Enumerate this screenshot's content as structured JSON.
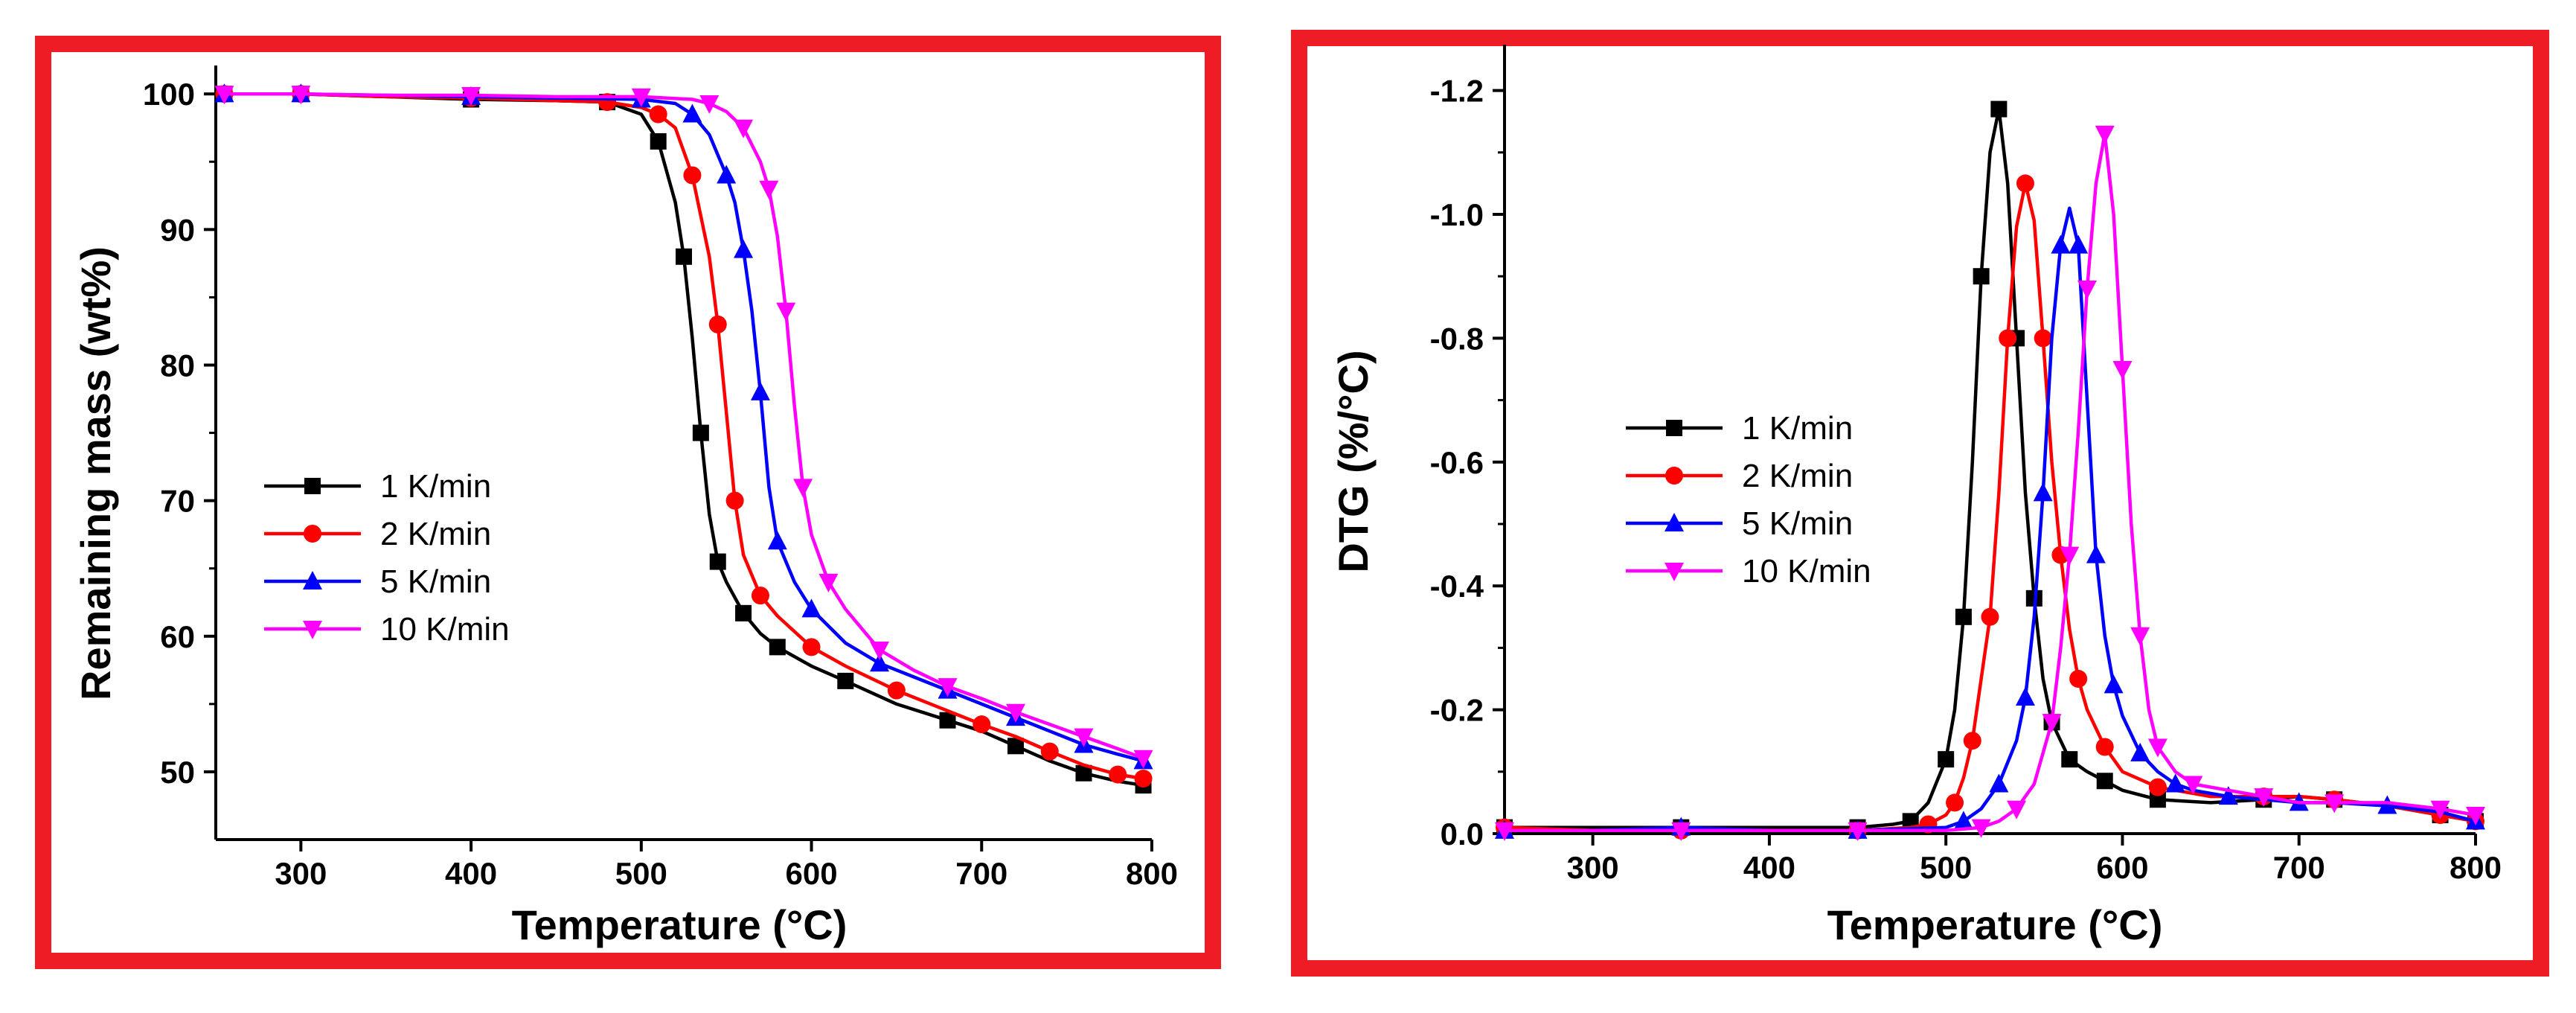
{
  "frame_color": "#ee1c25",
  "chart_data": [
    {
      "type": "line",
      "title": "",
      "xlabel": "Temperature (°C)",
      "ylabel": "Remaining mass (wt%)",
      "xlim": [
        250,
        800
      ],
      "ylim": [
        45,
        101
      ],
      "x_ticks": [
        300,
        400,
        500,
        600,
        700,
        800
      ],
      "x_tick_labels": [
        "300",
        "400",
        "500",
        "600",
        "700",
        "800"
      ],
      "y_ticks": [
        50,
        60,
        70,
        80,
        90,
        100
      ],
      "y_tick_labels": [
        "50",
        "60",
        "70",
        "80",
        "90",
        "100"
      ],
      "y_reversed": false,
      "legend_position": "center-left",
      "series": [
        {
          "name": "1 K/min",
          "color": "#000000",
          "marker": "square",
          "x": [
            255,
            275,
            300,
            350,
            400,
            450,
            480,
            500,
            510,
            520,
            525,
            530,
            535,
            540,
            545,
            550,
            560,
            570,
            580,
            600,
            620,
            650,
            680,
            700,
            720,
            740,
            760,
            780,
            795
          ],
          "y": [
            100,
            100,
            100,
            99.8,
            99.6,
            99.5,
            99.4,
            98.5,
            96.5,
            92,
            88,
            82,
            75,
            69,
            65.5,
            64,
            61.7,
            60.2,
            59.2,
            57.8,
            56.7,
            55,
            53.8,
            53,
            51.9,
            50.8,
            49.9,
            49.3,
            49
          ]
        },
        {
          "name": "2 K/min",
          "color": "#ff0000",
          "marker": "circle",
          "x": [
            255,
            275,
            300,
            350,
            400,
            450,
            480,
            500,
            510,
            520,
            530,
            540,
            545,
            550,
            555,
            560,
            570,
            580,
            600,
            620,
            650,
            680,
            700,
            720,
            740,
            760,
            780,
            795
          ],
          "y": [
            100,
            100,
            100,
            99.8,
            99.7,
            99.5,
            99.4,
            99,
            98.5,
            97.5,
            94,
            88,
            83,
            76.5,
            70,
            66,
            63,
            61.5,
            59.2,
            57.8,
            56,
            54.5,
            53.5,
            52.6,
            51.5,
            50.5,
            49.8,
            49.5
          ]
        },
        {
          "name": "5 K/min",
          "color": "#0000ff",
          "marker": "triangle-up",
          "x": [
            255,
            275,
            300,
            350,
            400,
            450,
            500,
            520,
            530,
            540,
            550,
            555,
            560,
            565,
            570,
            575,
            580,
            590,
            600,
            620,
            640,
            660,
            680,
            700,
            720,
            740,
            760,
            780,
            795
          ],
          "y": [
            100,
            100,
            100,
            99.9,
            99.8,
            99.7,
            99.6,
            99.3,
            98.5,
            97,
            94,
            92,
            88.5,
            84,
            78,
            71,
            67,
            64,
            62,
            59.5,
            58,
            57,
            56,
            55,
            54,
            53,
            52,
            51.3,
            50.8
          ]
        },
        {
          "name": "10 K/min",
          "color": "#ff00ff",
          "marker": "triangle-down",
          "x": [
            255,
            275,
            300,
            350,
            400,
            450,
            500,
            530,
            540,
            550,
            560,
            570,
            575,
            580,
            585,
            590,
            595,
            600,
            610,
            620,
            640,
            660,
            680,
            700,
            720,
            740,
            760,
            780,
            795
          ],
          "y": [
            100,
            100,
            100,
            99.9,
            99.9,
            99.8,
            99.8,
            99.6,
            99.3,
            98.7,
            97.5,
            95,
            93,
            89.5,
            84,
            77,
            71,
            67.5,
            64,
            62,
            59,
            57.5,
            56.3,
            55.4,
            54.4,
            53.5,
            52.6,
            51.7,
            51
          ]
        }
      ]
    },
    {
      "type": "line",
      "title": "",
      "xlabel": "Temperature (°C)",
      "ylabel": "DTG (%/°C)",
      "xlim": [
        250,
        800
      ],
      "ylim": [
        -1.25,
        0
      ],
      "x_ticks": [
        300,
        400,
        500,
        600,
        700,
        800
      ],
      "x_tick_labels": [
        "300",
        "400",
        "500",
        "600",
        "700",
        "800"
      ],
      "y_ticks": [
        0,
        -0.2,
        -0.4,
        -0.6,
        -0.8,
        -1.0,
        -1.2
      ],
      "y_tick_labels": [
        "0.0",
        "-0.2",
        "-0.4",
        "-0.6",
        "-0.8",
        "-1.0",
        "-1.2"
      ],
      "y_reversed": true,
      "legend_position": "center-left",
      "series": [
        {
          "name": "1 K/min",
          "color": "#000000",
          "marker": "square",
          "x": [
            250,
            300,
            350,
            400,
            450,
            470,
            480,
            490,
            500,
            505,
            510,
            515,
            520,
            525,
            530,
            535,
            540,
            545,
            550,
            555,
            560,
            565,
            570,
            580,
            590,
            600,
            620,
            650,
            680,
            700,
            720,
            750,
            780,
            800
          ],
          "y": [
            -0.01,
            -0.01,
            -0.01,
            -0.01,
            -0.01,
            -0.015,
            -0.02,
            -0.05,
            -0.12,
            -0.2,
            -0.35,
            -0.6,
            -0.9,
            -1.1,
            -1.17,
            -1.05,
            -0.8,
            -0.55,
            -0.38,
            -0.25,
            -0.18,
            -0.15,
            -0.12,
            -0.1,
            -0.085,
            -0.07,
            -0.055,
            -0.05,
            -0.055,
            -0.06,
            -0.055,
            -0.045,
            -0.03,
            -0.02
          ]
        },
        {
          "name": "2 K/min",
          "color": "#ff0000",
          "marker": "circle",
          "x": [
            250,
            300,
            350,
            400,
            450,
            480,
            490,
            500,
            505,
            510,
            515,
            520,
            525,
            530,
            535,
            540,
            545,
            550,
            555,
            560,
            565,
            570,
            575,
            580,
            590,
            600,
            620,
            650,
            680,
            700,
            720,
            750,
            780,
            800
          ],
          "y": [
            -0.01,
            -0.005,
            -0.005,
            -0.005,
            -0.005,
            -0.01,
            -0.015,
            -0.03,
            -0.05,
            -0.09,
            -0.15,
            -0.25,
            -0.35,
            -0.55,
            -0.8,
            -0.98,
            -1.05,
            -0.99,
            -0.8,
            -0.6,
            -0.45,
            -0.33,
            -0.25,
            -0.2,
            -0.14,
            -0.1,
            -0.075,
            -0.06,
            -0.06,
            -0.06,
            -0.055,
            -0.045,
            -0.03,
            -0.02
          ]
        },
        {
          "name": "5 K/min",
          "color": "#0000ff",
          "marker": "triangle-up",
          "x": [
            250,
            300,
            350,
            400,
            450,
            500,
            510,
            520,
            530,
            540,
            545,
            550,
            555,
            560,
            565,
            570,
            575,
            580,
            585,
            590,
            595,
            600,
            610,
            620,
            630,
            640,
            660,
            680,
            700,
            720,
            750,
            780,
            800
          ],
          "y": [
            -0.005,
            -0.005,
            -0.01,
            -0.005,
            -0.005,
            -0.01,
            -0.02,
            -0.04,
            -0.08,
            -0.15,
            -0.22,
            -0.35,
            -0.55,
            -0.8,
            -0.95,
            -1.01,
            -0.95,
            -0.7,
            -0.45,
            -0.32,
            -0.24,
            -0.19,
            -0.13,
            -0.1,
            -0.08,
            -0.07,
            -0.06,
            -0.055,
            -0.05,
            -0.05,
            -0.045,
            -0.035,
            -0.02
          ]
        },
        {
          "name": "10 K/min",
          "color": "#ff00ff",
          "marker": "triangle-down",
          "x": [
            250,
            300,
            350,
            400,
            450,
            500,
            520,
            530,
            540,
            550,
            560,
            565,
            570,
            575,
            580,
            585,
            590,
            595,
            600,
            605,
            610,
            615,
            620,
            630,
            640,
            660,
            680,
            700,
            720,
            750,
            780,
            800
          ],
          "y": [
            -0.005,
            -0.005,
            -0.005,
            -0.005,
            -0.005,
            -0.005,
            -0.01,
            -0.02,
            -0.04,
            -0.08,
            -0.18,
            -0.3,
            -0.45,
            -0.65,
            -0.88,
            -1.05,
            -1.13,
            -1.0,
            -0.75,
            -0.5,
            -0.32,
            -0.2,
            -0.14,
            -0.1,
            -0.08,
            -0.07,
            -0.06,
            -0.05,
            -0.05,
            -0.05,
            -0.04,
            -0.03
          ]
        }
      ]
    }
  ]
}
